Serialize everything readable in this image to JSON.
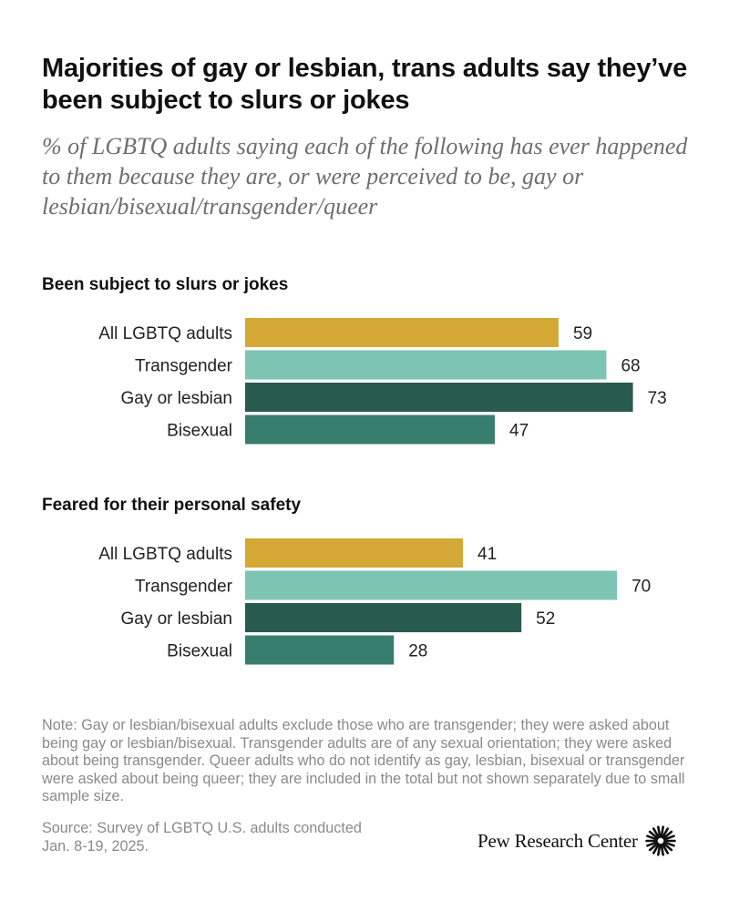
{
  "title": "Majorities of gay or lesbian, trans adults say they’ve been subject to slurs or jokes",
  "subtitle": "% of LGBTQ adults saying each of the following has ever happened to them because they are, or were perceived to be, gay or lesbian/bisexual/transgender/queer",
  "note": "Note: Gay or lesbian/bisexual adults exclude those who are transgender; they were asked about being gay or lesbian/bisexual. Transgender adults are of any sexual orientation; they were asked about being transgender. Queer adults who do not identify as gay, lesbian, bisexual or transgender were asked about being queer; they are included in the total but not shown separately due to small sample size.",
  "source_line1": "Source: Survey of LGBTQ U.S. adults conducted",
  "source_line2": "Jan. 8-19, 2025.",
  "logo_text": "Pew Research Center",
  "logo_icon": "pew-sunburst-icon",
  "colors": {
    "All LGBTQ adults": "#d4a835",
    "Transgender": "#7ec4b3",
    "Gay or lesbian": "#285a4d",
    "Bisexual": "#387e6f"
  },
  "chart_data": [
    {
      "type": "bar",
      "orientation": "horizontal",
      "title": "Been subject to slurs or jokes",
      "categories": [
        "All LGBTQ adults",
        "Transgender",
        "Gay or lesbian",
        "Bisexual"
      ],
      "values": [
        59,
        68,
        73,
        47
      ],
      "xlim": [
        0,
        100
      ],
      "grid": false
    },
    {
      "type": "bar",
      "orientation": "horizontal",
      "title": "Feared for their personal safety",
      "categories": [
        "All LGBTQ adults",
        "Transgender",
        "Gay or lesbian",
        "Bisexual"
      ],
      "values": [
        41,
        70,
        52,
        28
      ],
      "xlim": [
        0,
        100
      ],
      "grid": false
    }
  ]
}
